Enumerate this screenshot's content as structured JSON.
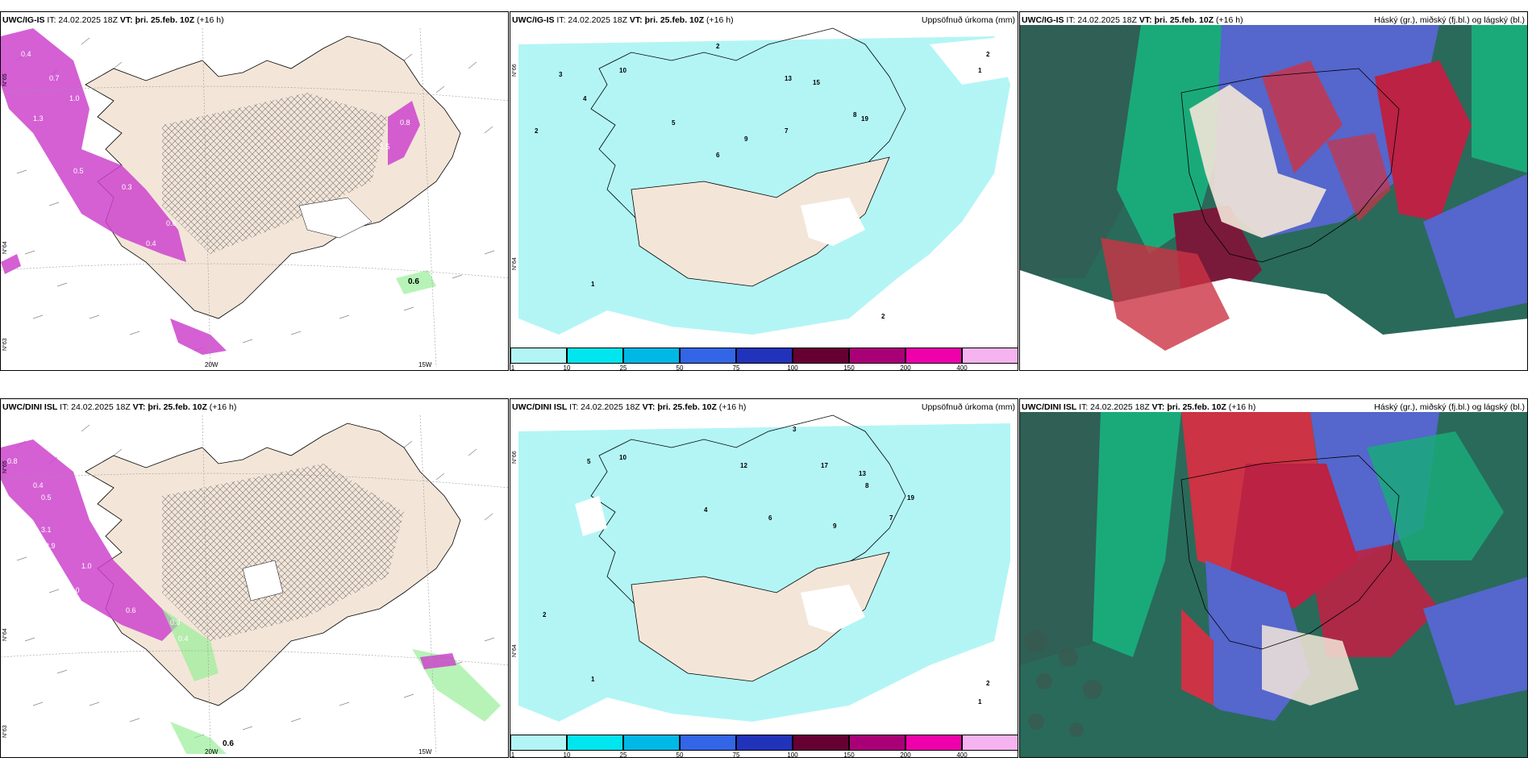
{
  "panels": [
    {
      "model": "UWC/IG-IS",
      "it": "IT: 24.02.2025 18Z",
      "vt_label": "VT:",
      "vt": "þri. 25.feb. 10Z",
      "lead": "(+16 h)",
      "right_title": "",
      "values": [
        "0.4",
        "0.7",
        "1.0",
        "1.3",
        "0.5",
        "0.3",
        "0.4",
        "0.6",
        "0.8",
        "1.5",
        "0.6"
      ],
      "lon_labels": [
        "20W",
        "15W"
      ],
      "lat_labels": [
        "N°65",
        "N°64",
        "N°63"
      ]
    },
    {
      "model": "UWC/IG-IS",
      "it": "IT: 24.02.2025 18Z",
      "vt_label": "VT:",
      "vt": "þri. 25.feb. 10Z",
      "lead": "(+16 h)",
      "right_title": "Uppsöfnuð úrkoma (mm)",
      "values": [
        "2",
        "3",
        "4",
        "5",
        "10",
        "13",
        "15",
        "19",
        "2",
        "1",
        "8",
        "6",
        "7",
        "9",
        "2",
        "1",
        "2"
      ],
      "lat_labels": [
        "N°66",
        "N°64"
      ]
    },
    {
      "model": "UWC/IG-IS",
      "it": "IT: 24.02.2025 18Z",
      "vt_label": "VT:",
      "vt": "þri. 25.feb. 10Z",
      "lead": "(+16 h)",
      "right_title": "Háský (gr.), miðský (fj.bl.) og lágský (bl.)"
    },
    {
      "model": "UWC/DINI ISL",
      "it": "IT: 24.02.2025 18Z",
      "vt_label": "VT:",
      "vt": "þri. 25.feb. 10Z",
      "lead": "(+16 h)",
      "right_title": "",
      "values": [
        "0.8",
        "0.4",
        "0.5",
        "3.1",
        "2.9",
        "1.0",
        "2.0",
        "0.6",
        "0.3",
        "0.4",
        "0.6"
      ],
      "lon_labels": [
        "20W",
        "15W"
      ],
      "lat_labels": [
        "N°65",
        "N°64",
        "N°63"
      ]
    },
    {
      "model": "UWC/DINI ISL",
      "it": "IT: 24.02.2025 18Z",
      "vt_label": "VT:",
      "vt": "þri. 25.feb. 10Z",
      "lead": "(+16 h)",
      "right_title": "Uppsöfnuð úrkoma (mm)",
      "values": [
        "3",
        "5",
        "10",
        "12",
        "17",
        "13",
        "19",
        "4",
        "6",
        "2",
        "1",
        "8",
        "7",
        "9",
        "2",
        "1"
      ],
      "lat_labels": [
        "N°66",
        "N°64"
      ]
    },
    {
      "model": "UWC/DINI ISL",
      "it": "IT: 24.02.2025 18Z",
      "vt_label": "VT:",
      "vt": "þri. 25.feb. 10Z",
      "lead": "(+16 h)",
      "right_title": "Háský (gr.), miðský (fj.bl.) og lágský (bl.)"
    }
  ],
  "colorbar": {
    "labels": [
      "1",
      "10",
      "25",
      "50",
      "75",
      "100",
      "150",
      "200",
      "400"
    ],
    "colors": [
      "#b3f5f5",
      "#00e5ee",
      "#00b8e6",
      "#3366e6",
      "#2233bb",
      "#660033",
      "#aa0077",
      "#ee00aa",
      "#f5b3f0"
    ]
  },
  "colors": {
    "land": "#f3e6d8",
    "precip_light": "#b3f5f5",
    "magenta": "#cc44cc",
    "high_cloud": "#1aaa7a",
    "mid_cloud": "#5566cc",
    "low_cloud": "#cc3344"
  }
}
